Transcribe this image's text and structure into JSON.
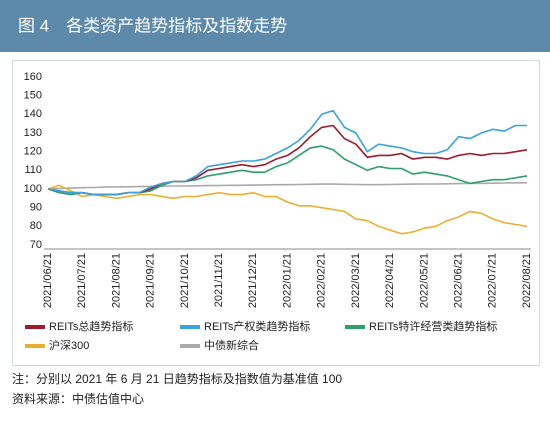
{
  "chart_data": {
    "type": "line",
    "title": "图 4　各类资产趋势指标及指数走势",
    "categories": [
      "2021/06/21",
      null,
      null,
      "2021/07/21",
      null,
      null,
      "2021/08/21",
      null,
      null,
      "2021/09/21",
      null,
      null,
      "2021/10/21",
      null,
      null,
      "2021/11/21",
      null,
      null,
      "2021/12/21",
      null,
      null,
      "2022/01/21",
      null,
      null,
      "2022/02/21",
      null,
      null,
      "2022/03/21",
      null,
      null,
      "2022/04/21",
      null,
      null,
      "2022/05/21",
      null,
      null,
      "2022/06/21",
      null,
      null,
      "2022/07/21",
      null,
      null,
      "2022/08/21"
    ],
    "ylim": [
      70,
      160
    ],
    "yticks": [
      70,
      80,
      90,
      100,
      110,
      120,
      130,
      140,
      150,
      160
    ],
    "grid": false,
    "legend": "bottom",
    "series": [
      {
        "name": "REITs总趋势指标",
        "color": "#9b1c2e",
        "values": [
          100,
          99,
          98,
          98,
          97,
          97,
          97,
          98,
          98,
          100,
          103,
          104,
          104,
          106,
          110,
          111,
          112,
          113,
          112,
          113,
          116,
          118,
          122,
          128,
          133,
          134,
          127,
          124,
          117,
          118,
          118,
          119,
          116,
          117,
          117,
          116,
          118,
          119,
          118,
          119,
          119,
          120,
          121
        ]
      },
      {
        "name": "REITs产权类趋势指标",
        "color": "#3aa3db",
        "values": [
          100,
          99,
          98,
          98,
          97,
          97,
          97,
          98,
          98,
          101,
          103,
          104,
          104,
          107,
          112,
          113,
          114,
          115,
          115,
          116,
          119,
          122,
          126,
          132,
          140,
          142,
          133,
          130,
          120,
          124,
          123,
          122,
          120,
          119,
          119,
          121,
          128,
          127,
          130,
          132,
          131,
          134,
          134
        ]
      },
      {
        "name": "REITs特许经营类趋势指标",
        "color": "#2e9e6a",
        "values": [
          100,
          98,
          97,
          98,
          97,
          97,
          97,
          98,
          98,
          99,
          102,
          104,
          104,
          105,
          107,
          108,
          109,
          110,
          109,
          109,
          112,
          114,
          118,
          122,
          123,
          121,
          116,
          113,
          110,
          112,
          111,
          111,
          108,
          109,
          108,
          107,
          105,
          103,
          104,
          105,
          105,
          106,
          107
        ]
      },
      {
        "name": "沪深300",
        "color": "#e8b032",
        "values": [
          100,
          102,
          99,
          96,
          97,
          96,
          95,
          96,
          97,
          97,
          96,
          95,
          96,
          96,
          97,
          98,
          97,
          97,
          98,
          96,
          96,
          93,
          91,
          91,
          90,
          89,
          88,
          84,
          83,
          80,
          78,
          76,
          77,
          79,
          80,
          83,
          85,
          88,
          87,
          84,
          82,
          81,
          80
        ]
      },
      {
        "name": "中债新综合",
        "color": "#aaaaaa",
        "values": [
          100,
          100.3,
          100.5,
          100.7,
          100.8,
          101,
          101.1,
          101.2,
          101.3,
          101.4,
          101.5,
          101.6,
          101.6,
          101.7,
          101.8,
          101.9,
          102,
          102,
          102.1,
          102.2,
          102.3,
          102.3,
          102.4,
          102.5,
          102.6,
          102.6,
          102.5,
          102.4,
          102.3,
          102.3,
          102.4,
          102.5,
          102.6,
          102.7,
          102.7,
          102.8,
          102.9,
          103,
          103,
          103.1,
          103.2,
          103.3,
          103.3
        ]
      }
    ],
    "notes": [
      "注：分别以 2021 年 6 月 21 日趋势指标及指数值为基准值 100",
      "资料来源：中债估值中心"
    ]
  }
}
